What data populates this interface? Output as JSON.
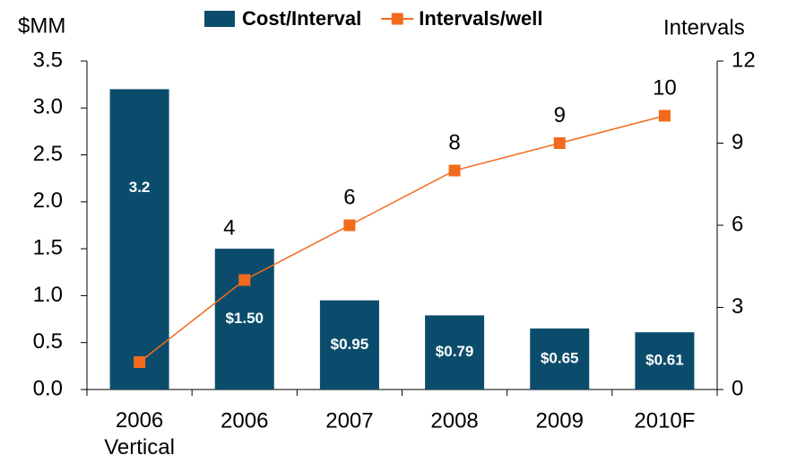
{
  "chart_data": {
    "type": "bar",
    "categories": [
      "2006 Vertical",
      "2006",
      "2007",
      "2008",
      "2009",
      "2010F"
    ],
    "series": [
      {
        "name": "Cost/Interval",
        "type": "bar",
        "color": "#0b4c6c",
        "values": [
          3.2,
          1.5,
          0.95,
          0.79,
          0.65,
          0.61
        ],
        "value_labels": [
          "3.2",
          "$1.50",
          "$0.95",
          "$0.79",
          "$0.65",
          "$0.61"
        ]
      },
      {
        "name": "Intervals/well",
        "type": "line",
        "axis": "y2",
        "color": "#f26b1d",
        "values": [
          1,
          4,
          6,
          8,
          9,
          10
        ],
        "value_labels": [
          null,
          "4",
          "6",
          "8",
          "9",
          "10"
        ]
      }
    ],
    "ylabel": "$MM",
    "y2label": "Intervals",
    "ylim": [
      0,
      3.5
    ],
    "yticks": [
      {
        "value": 0,
        "label": "0.0"
      },
      0.5,
      {
        "value": 1,
        "label": "1.0"
      },
      1.5,
      {
        "value": 2,
        "label": "2.0"
      },
      2.5,
      {
        "value": 3,
        "label": "3.0"
      },
      3.5
    ],
    "y2lim": [
      0,
      12
    ],
    "y2ticks": [
      0,
      3,
      6,
      9,
      12
    ],
    "legend": "top"
  }
}
